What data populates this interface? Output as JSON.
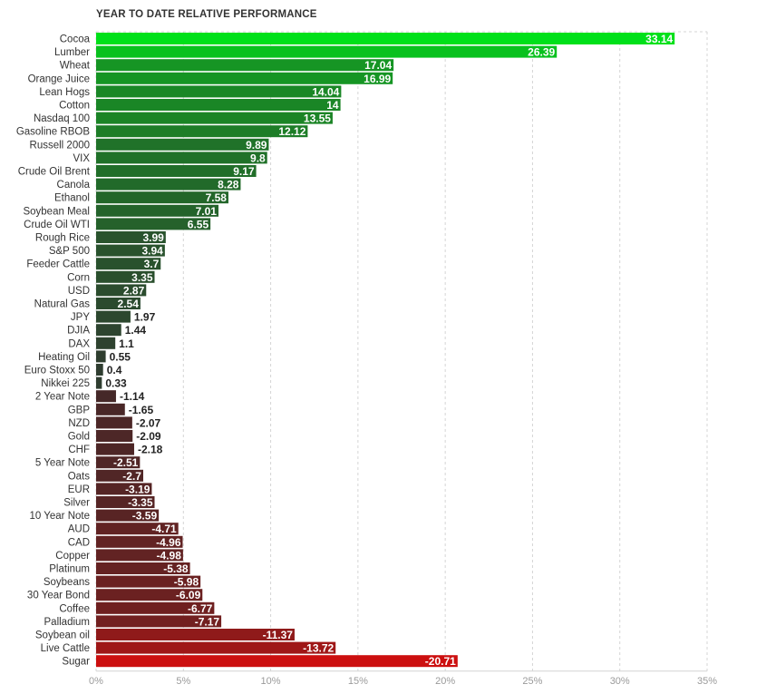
{
  "chart_data": {
    "type": "bar",
    "orientation": "horizontal",
    "title": "YEAR TO DATE RELATIVE PERFORMANCE",
    "xlim": [
      0,
      35
    ],
    "xticks": [
      0,
      5,
      10,
      15,
      20,
      25,
      30,
      35
    ],
    "xtick_labels": [
      "0%",
      "5%",
      "10%",
      "15%",
      "20%",
      "25%",
      "30%",
      "35%"
    ],
    "grid": true,
    "categories": [
      "Cocoa",
      "Lumber",
      "Wheat",
      "Orange Juice",
      "Lean Hogs",
      "Cotton",
      "Nasdaq 100",
      "Gasoline RBOB",
      "Russell 2000",
      "VIX",
      "Crude Oil Brent",
      "Canola",
      "Ethanol",
      "Soybean Meal",
      "Crude Oil WTI",
      "Rough Rice",
      "S&P 500",
      "Feeder Cattle",
      "Corn",
      "USD",
      "Natural Gas",
      "JPY",
      "DJIA",
      "DAX",
      "Heating Oil",
      "Euro Stoxx 50",
      "Nikkei 225",
      "2 Year Note",
      "GBP",
      "NZD",
      "Gold",
      "CHF",
      "5 Year Note",
      "Oats",
      "EUR",
      "Silver",
      "10 Year Note",
      "AUD",
      "CAD",
      "Copper",
      "Platinum",
      "Soybeans",
      "30 Year Bond",
      "Coffee",
      "Palladium",
      "Soybean oil",
      "Live Cattle",
      "Sugar"
    ],
    "values": [
      33.14,
      26.39,
      17.04,
      16.99,
      14.04,
      14,
      13.55,
      12.12,
      9.89,
      9.8,
      9.17,
      8.28,
      7.58,
      7.01,
      6.55,
      3.99,
      3.94,
      3.7,
      3.35,
      2.87,
      2.54,
      1.97,
      1.44,
      1.1,
      0.55,
      0.4,
      0.33,
      -1.14,
      -1.65,
      -2.07,
      -2.09,
      -2.18,
      -2.51,
      -2.7,
      -3.19,
      -3.35,
      -3.59,
      -4.71,
      -4.96,
      -4.98,
      -5.38,
      -5.98,
      -6.09,
      -6.77,
      -7.17,
      -11.37,
      -13.72,
      -20.71
    ],
    "value_labels": [
      "33.14",
      "26.39",
      "17.04",
      "16.99",
      "14.04",
      "14",
      "13.55",
      "12.12",
      "9.89",
      "9.8",
      "9.17",
      "8.28",
      "7.58",
      "7.01",
      "6.55",
      "3.99",
      "3.94",
      "3.7",
      "3.35",
      "2.87",
      "2.54",
      "1.97",
      "1.44",
      "1.1",
      "0.55",
      "0.4",
      "0.33",
      "-1.14",
      "-1.65",
      "-2.07",
      "-2.09",
      "-2.18",
      "-2.51",
      "-2.7",
      "-3.19",
      "-3.35",
      "-3.59",
      "-4.71",
      "-4.96",
      "-4.98",
      "-5.38",
      "-5.98",
      "-6.09",
      "-6.77",
      "-7.17",
      "-11.37",
      "-13.72",
      "-20.71"
    ],
    "note": "Negative values drawn with bar length equal to absolute value; color encodes sign and magnitude.",
    "colors": {
      "positive_max": "#00e01a",
      "positive_min": "#303a30",
      "negative_min": "#3a2a2a",
      "negative_max": "#cc0f0f",
      "grid": "#d4d4d4",
      "axis_text": "#9a9a9a",
      "label_text": "#333333"
    }
  }
}
